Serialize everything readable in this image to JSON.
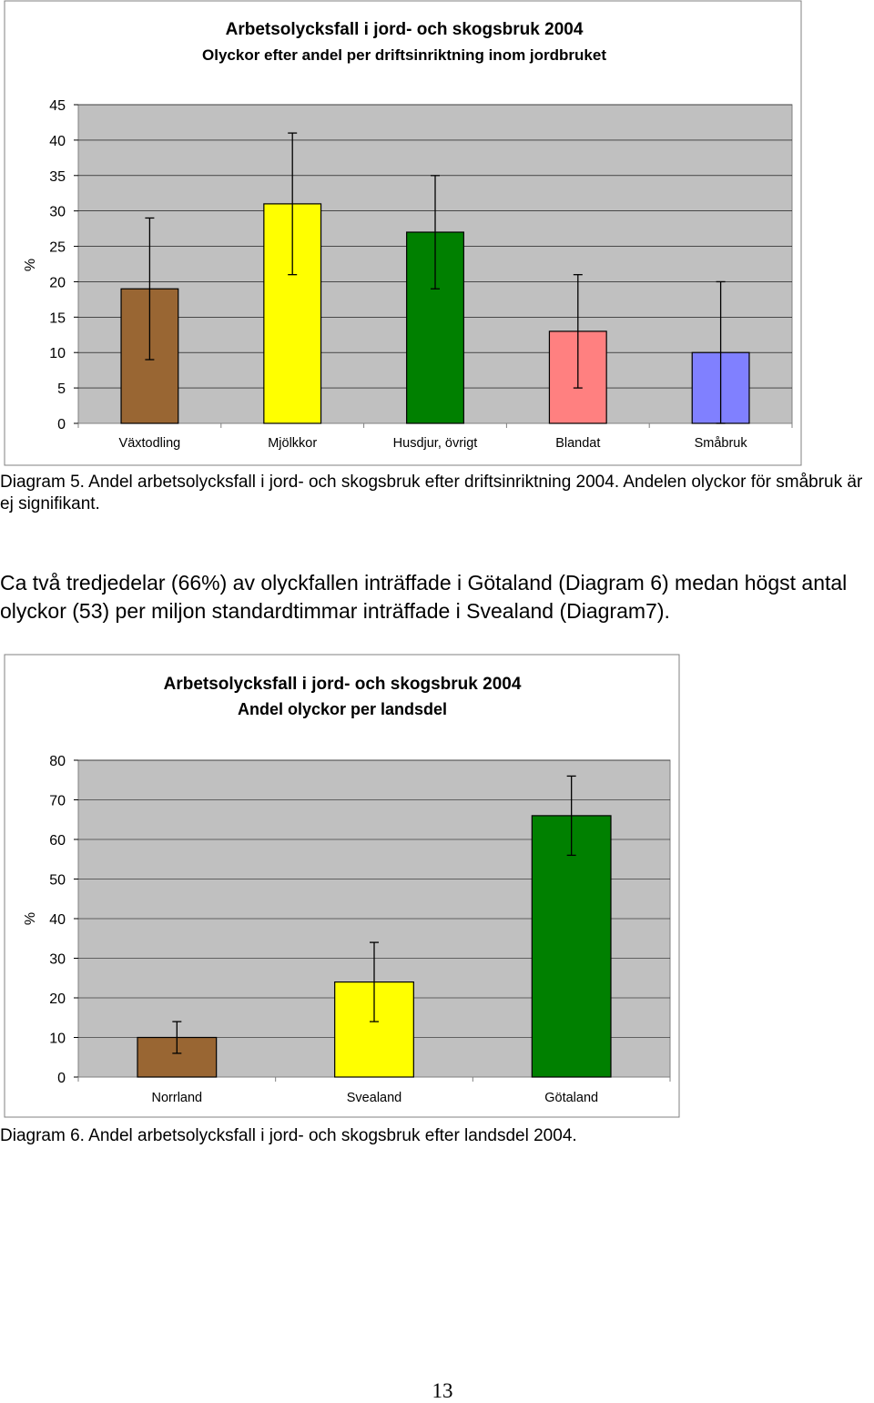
{
  "chart_data": [
    {
      "type": "bar",
      "title": "Arbetsolycksfall i jord- och skogsbruk 2004",
      "subtitle": "Olyckor efter andel per driftsinriktning inom jordbruket",
      "xlabel": "",
      "ylabel": "%",
      "ylim": [
        0,
        45
      ],
      "yticks": [
        0,
        5,
        10,
        15,
        20,
        25,
        30,
        35,
        40,
        45
      ],
      "grid": true,
      "legend": "none",
      "plot_bg": "#c0c0c0",
      "categories": [
        "Växtodling",
        "Mjölkkor",
        "Husdjur, övrigt",
        "Blandat",
        "Småbruk"
      ],
      "values": [
        19,
        31,
        27,
        13,
        10
      ],
      "error_low": [
        9,
        21,
        19,
        5,
        0
      ],
      "error_high": [
        29,
        41,
        35,
        21,
        20
      ],
      "colors": [
        "#996633",
        "#ffff00",
        "#008000",
        "#ff8080",
        "#8080ff"
      ]
    },
    {
      "type": "bar",
      "title": "Arbetsolycksfall i jord- och skogsbruk 2004",
      "subtitle": "Andel olyckor per landsdel",
      "xlabel": "",
      "ylabel": "%",
      "ylim": [
        0,
        80
      ],
      "yticks": [
        0,
        10,
        20,
        30,
        40,
        50,
        60,
        70,
        80
      ],
      "grid": true,
      "legend": "none",
      "plot_bg": "#c0c0c0",
      "categories": [
        "Norrland",
        "Svealand",
        "Götaland"
      ],
      "values": [
        10,
        24,
        66
      ],
      "error_low": [
        6,
        14,
        56
      ],
      "error_high": [
        14,
        34,
        76
      ],
      "colors": [
        "#996633",
        "#ffff00",
        "#008000"
      ]
    }
  ],
  "text": {
    "caption1": "Diagram 5. Andel arbetsolycksfall i jord- och skogsbruk efter driftsinriktning 2004. Andelen olyckor för småbruk är ej signifikant.",
    "paragraph": "Ca två tredjedelar (66%) av olyckfallen inträffade i Götaland (Diagram 6) medan högst antal olyckor (53) per miljon standardtimmar inträffade i Svealand (Diagram7).",
    "caption2": "Diagram 6. Andel arbetsolycksfall i jord- och skogsbruk efter landsdel 2004.",
    "page_number": "13"
  }
}
